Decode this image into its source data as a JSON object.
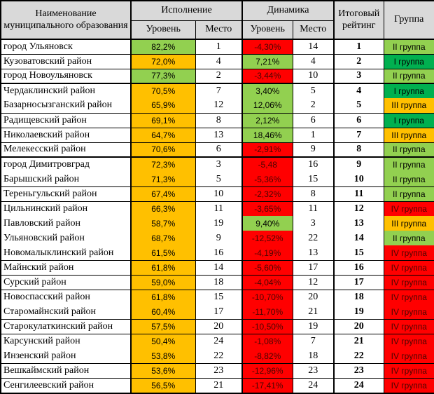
{
  "colors": {
    "green": "#92d050",
    "dark_green": "#00b050",
    "orange": "#ffc000",
    "red": "#ff0000",
    "header_bg": "#d9d9d9",
    "grid": "#000000"
  },
  "header": {
    "name": "Наименование муниципального образования",
    "execution": "Исполнение",
    "dynamics": "Динамика",
    "level": "Уровень",
    "place": "Место",
    "final_rating": "Итоговый рейтинг",
    "group": "Группа"
  },
  "rows": [
    {
      "name": "город Ульяновск",
      "exec_level": "82,2%",
      "exec_color": "green",
      "exec_place": "1",
      "dyn_level": "-4,30%",
      "dyn_color": "red",
      "dyn_place": "14",
      "rating": "1",
      "group": "II группа",
      "group_color": "green",
      "divider": "thin"
    },
    {
      "name": "Кузоватовский район",
      "exec_level": "72,0%",
      "exec_color": "orange",
      "exec_place": "4",
      "dyn_level": "7,21%",
      "dyn_color": "green",
      "dyn_place": "4",
      "rating": "2",
      "group": "I группа",
      "group_color": "dark_green",
      "divider": "thin"
    },
    {
      "name": "город Новоульяновск",
      "exec_level": "77,3%",
      "exec_color": "green",
      "exec_place": "2",
      "dyn_level": "-3,44%",
      "dyn_color": "red",
      "dyn_place": "10",
      "rating": "3",
      "group": "II группа",
      "group_color": "green",
      "divider": "thick"
    },
    {
      "name": "Чердаклинский район",
      "exec_level": "70,5%",
      "exec_color": "orange",
      "exec_place": "7",
      "dyn_level": "3,40%",
      "dyn_color": "green",
      "dyn_place": "5",
      "rating": "4",
      "group": "I группа",
      "group_color": "dark_green",
      "divider": "none"
    },
    {
      "name": "Базарносызганский район",
      "exec_level": "65,9%",
      "exec_color": "orange",
      "exec_place": "12",
      "dyn_level": "12,06%",
      "dyn_color": "green",
      "dyn_place": "2",
      "rating": "5",
      "group": "III группа",
      "group_color": "orange",
      "divider": "thin"
    },
    {
      "name": "Радищевский район",
      "exec_level": "69,1%",
      "exec_color": "orange",
      "exec_place": "8",
      "dyn_level": "2,12%",
      "dyn_color": "green",
      "dyn_place": "6",
      "rating": "6",
      "group": "I группа",
      "group_color": "dark_green",
      "divider": "thin"
    },
    {
      "name": "Николаевский район",
      "exec_level": "64,7%",
      "exec_color": "orange",
      "exec_place": "13",
      "dyn_level": "18,46%",
      "dyn_color": "green",
      "dyn_place": "1",
      "rating": "7",
      "group": "III группа",
      "group_color": "orange",
      "divider": "thin"
    },
    {
      "name": "Мелекесский район",
      "exec_level": "70,6%",
      "exec_color": "orange",
      "exec_place": "6",
      "dyn_level": "-2,91%",
      "dyn_color": "red",
      "dyn_place": "9",
      "rating": "8",
      "group": "II группа",
      "group_color": "green",
      "divider": "thick"
    },
    {
      "name": "город Димитровград",
      "exec_level": "72,3%",
      "exec_color": "orange",
      "exec_place": "3",
      "dyn_level": "-5,48",
      "dyn_color": "red",
      "dyn_place": "16",
      "rating": "9",
      "group": "II группа",
      "group_color": "green",
      "divider": "none"
    },
    {
      "name": "Барышский район",
      "exec_level": "71,3%",
      "exec_color": "orange",
      "exec_place": "5",
      "dyn_level": "-5,36%",
      "dyn_color": "red",
      "dyn_place": "15",
      "rating": "10",
      "group": "II группа",
      "group_color": "green",
      "divider": "thin"
    },
    {
      "name": "Тереньгульский район",
      "exec_level": "67,4%",
      "exec_color": "orange",
      "exec_place": "10",
      "dyn_level": "-2,32%",
      "dyn_color": "red",
      "dyn_place": "8",
      "rating": "11",
      "group": "II группа",
      "group_color": "green",
      "divider": "thin"
    },
    {
      "name": "Цильнинский район",
      "exec_level": "66,3%",
      "exec_color": "orange",
      "exec_place": "11",
      "dyn_level": "-3,65%",
      "dyn_color": "red",
      "dyn_place": "11",
      "rating": "12",
      "group": "IV группа",
      "group_color": "red",
      "divider": "none"
    },
    {
      "name": "Павловский район",
      "exec_level": "58,7%",
      "exec_color": "orange",
      "exec_place": "19",
      "dyn_level": "9,40%",
      "dyn_color": "green",
      "dyn_place": "3",
      "rating": "13",
      "group": "III группа",
      "group_color": "orange",
      "divider": "none"
    },
    {
      "name": "Ульяновский район",
      "exec_level": "68,7%",
      "exec_color": "orange",
      "exec_place": "9",
      "dyn_level": "-12,52%",
      "dyn_color": "red",
      "dyn_place": "22",
      "rating": "14",
      "group": "II группа",
      "group_color": "green",
      "divider": "none"
    },
    {
      "name": "Новомалыклинский район",
      "exec_level": "61,5%",
      "exec_color": "orange",
      "exec_place": "16",
      "dyn_level": "-4,19%",
      "dyn_color": "red",
      "dyn_place": "13",
      "rating": "15",
      "group": "IV группа",
      "group_color": "red",
      "divider": "thin"
    },
    {
      "name": "Майнский район",
      "exec_level": "61,8%",
      "exec_color": "orange",
      "exec_place": "14",
      "dyn_level": "-5,60%",
      "dyn_color": "red",
      "dyn_place": "17",
      "rating": "16",
      "group": "IV группа",
      "group_color": "red",
      "divider": "thin"
    },
    {
      "name": "Сурский район",
      "exec_level": "59,0%",
      "exec_color": "orange",
      "exec_place": "18",
      "dyn_level": "-4,04%",
      "dyn_color": "red",
      "dyn_place": "12",
      "rating": "17",
      "group": "IV группа",
      "group_color": "red",
      "divider": "thin"
    },
    {
      "name": "Новоспасский район",
      "exec_level": "61,8%",
      "exec_color": "orange",
      "exec_place": "15",
      "dyn_level": "-10,70%",
      "dyn_color": "red",
      "dyn_place": "20",
      "rating": "18",
      "group": "IV группа",
      "group_color": "red",
      "divider": "none"
    },
    {
      "name": "Старомайнский район",
      "exec_level": "60,4%",
      "exec_color": "orange",
      "exec_place": "17",
      "dyn_level": "-11,70%",
      "dyn_color": "red",
      "dyn_place": "21",
      "rating": "19",
      "group": "IV группа",
      "group_color": "red",
      "divider": "thin"
    },
    {
      "name": "Старокулаткинский район",
      "exec_level": "57,5%",
      "exec_color": "orange",
      "exec_place": "20",
      "dyn_level": "-10,50%",
      "dyn_color": "red",
      "dyn_place": "19",
      "rating": "20",
      "group": "IV группа",
      "group_color": "red",
      "divider": "thin"
    },
    {
      "name": "Карсунский район",
      "exec_level": "50,4%",
      "exec_color": "orange",
      "exec_place": "24",
      "dyn_level": "-1,08%",
      "dyn_color": "red",
      "dyn_place": "7",
      "rating": "21",
      "group": "IV группа",
      "group_color": "red",
      "divider": "none"
    },
    {
      "name": "Инзенский район",
      "exec_level": "53,8%",
      "exec_color": "orange",
      "exec_place": "22",
      "dyn_level": "-8,82%",
      "dyn_color": "red",
      "dyn_place": "18",
      "rating": "22",
      "group": "IV группа",
      "group_color": "red",
      "divider": "thin"
    },
    {
      "name": "Вешкаймский район",
      "exec_level": "53,6%",
      "exec_color": "orange",
      "exec_place": "23",
      "dyn_level": "-12,96%",
      "dyn_color": "red",
      "dyn_place": "23",
      "rating": "23",
      "group": "IV группа",
      "group_color": "red",
      "divider": "thin"
    },
    {
      "name": "Сенгилеевский район",
      "exec_level": "56,5%",
      "exec_color": "orange",
      "exec_place": "21",
      "dyn_level": "-17,41%",
      "dyn_color": "red",
      "dyn_place": "24",
      "rating": "24",
      "group": "IV группа",
      "group_color": "red",
      "divider": "thin"
    }
  ]
}
